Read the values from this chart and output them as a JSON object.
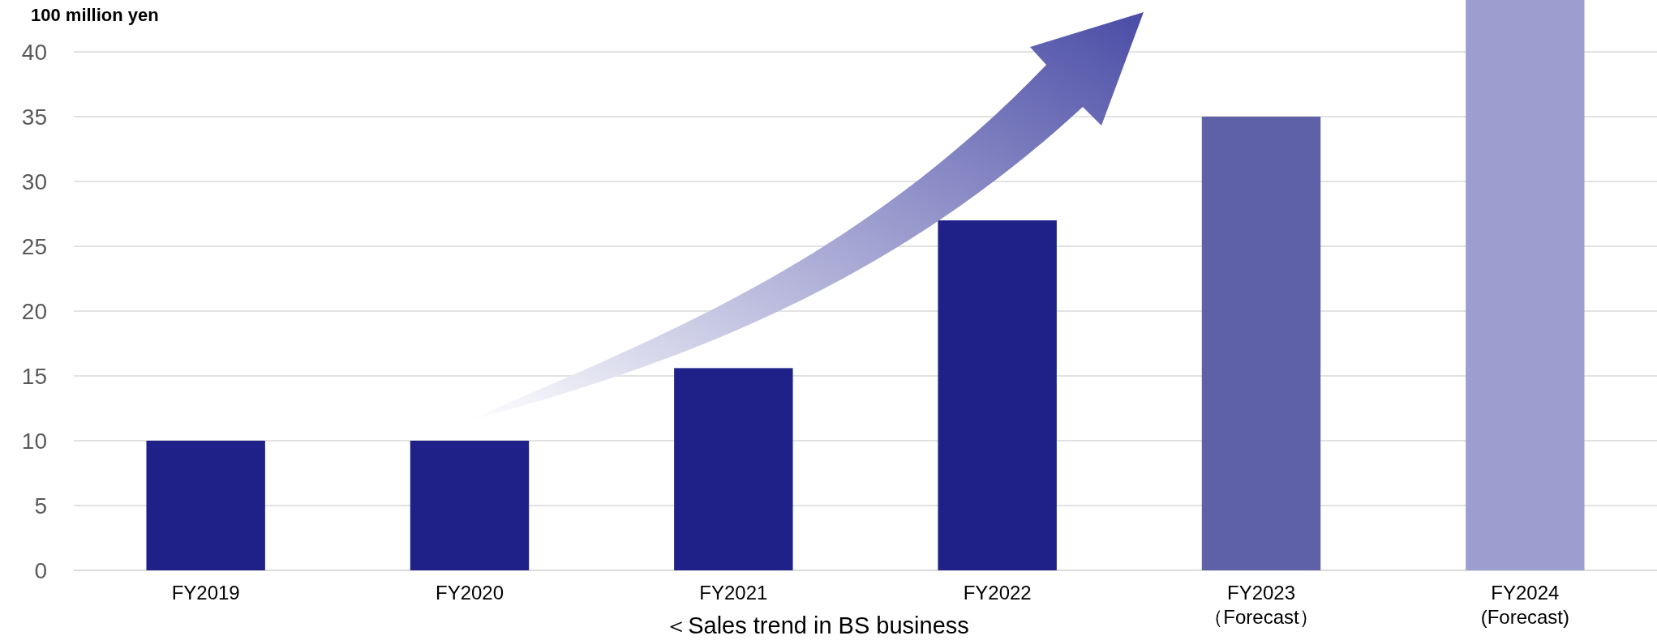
{
  "chart_data": {
    "type": "bar",
    "ylabel": "100 million yen",
    "categories": [
      "FY2019",
      "FY2020",
      "FY2021",
      "FY2022",
      "FY2023\n（Forecast）",
      "FY2024\n(Forecast)"
    ],
    "values": [
      10,
      10,
      15.6,
      27,
      35,
      44
    ],
    "colors": [
      "#1f2088",
      "#1f2088",
      "#1f2088",
      "#1f2088",
      "#5f61a8",
      "#9d9ed0"
    ],
    "ylim": [
      0,
      44
    ],
    "yticks": [
      0,
      5,
      10,
      15,
      20,
      25,
      30,
      35,
      40
    ],
    "grid": "y",
    "annotations": [
      "＜Sales trend in BS business"
    ]
  }
}
